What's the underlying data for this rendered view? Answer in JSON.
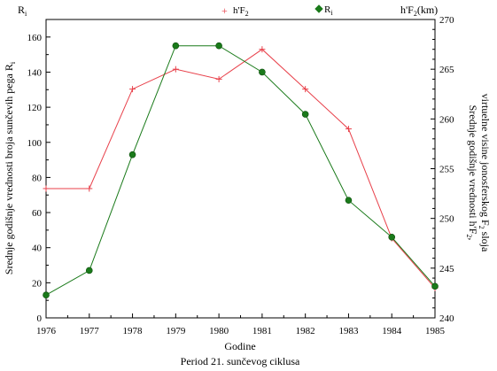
{
  "chart_data": {
    "type": "line",
    "x_label": "Godine",
    "caption": "Period 21. sunčevog ciklusa",
    "x": [
      1976,
      1977,
      1978,
      1979,
      1980,
      1981,
      1982,
      1983,
      1984,
      1985
    ],
    "x_ticks": [
      "1976",
      "1977",
      "1978",
      "1979",
      "1980",
      "1981",
      "1982",
      "1983",
      "1984",
      "1985"
    ],
    "y_left": {
      "corner_label": "R",
      "corner_sub": "i",
      "title": "Srednje godišnje vrednosti broja sunčevih pega R",
      "title_sub": "i",
      "range": [
        0,
        170
      ],
      "ticks": [
        "0",
        "20",
        "40",
        "60",
        "80",
        "100",
        "120",
        "140",
        "160"
      ]
    },
    "y_right": {
      "corner_label": "h'F",
      "corner_sub": "2",
      "corner_suffix": "(km)",
      "title_line1": "Srednje godišnje vrednosti h'F",
      "title_line1_sub": "2",
      "title_line1_suffix": ",",
      "title_line2": "virtuelne visine jonosferskog F",
      "title_line2_sub": "2",
      "title_line2_suffix": " sloja",
      "range": [
        240,
        270
      ],
      "ticks": [
        "240",
        "245",
        "250",
        "255",
        "260",
        "265",
        "270"
      ]
    },
    "series": [
      {
        "name": "h'F",
        "name_sub": "2",
        "axis": "right",
        "color": "#e8404a",
        "marker": "plus",
        "values": [
          253.0,
          253.0,
          263.0,
          265.0,
          264.0,
          267.0,
          263.0,
          259.0,
          248.0,
          243.0
        ]
      },
      {
        "name": "R",
        "name_sub": "i",
        "axis": "left",
        "color": "#1a7a1a",
        "marker": "diamond",
        "values": [
          13,
          27,
          93,
          155,
          155,
          140,
          116,
          67,
          46,
          18
        ]
      }
    ],
    "grid": false,
    "legend_position": "top"
  }
}
